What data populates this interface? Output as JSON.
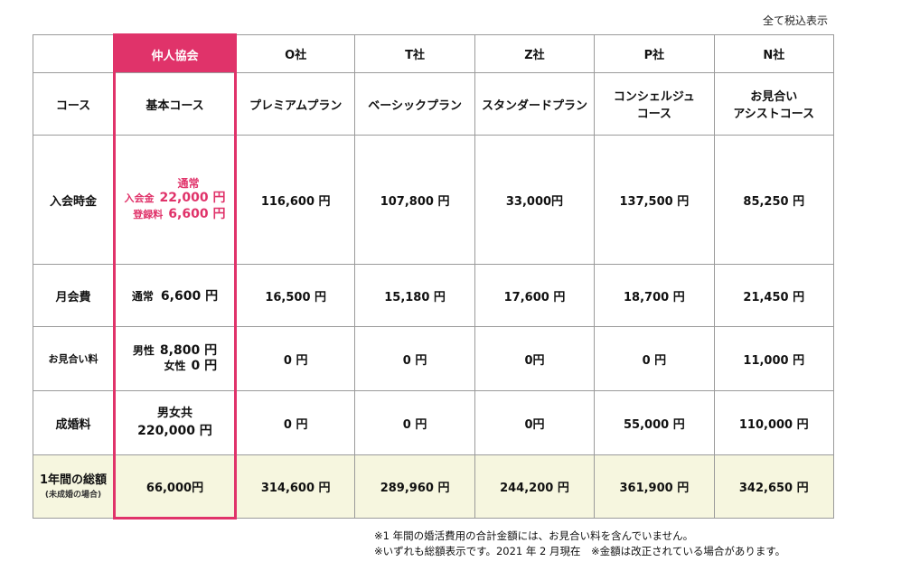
{
  "tax_note": "全て税込表示",
  "header": {
    "ours": "仲人協会",
    "companies": [
      "O社",
      "T社",
      "Z社",
      "P社",
      "N社"
    ]
  },
  "rows": {
    "course": {
      "label": "コース",
      "ours": "基本コース",
      "values": [
        "プレミアムプラン",
        "ベーシックプラン",
        "スタンダードプラン",
        "コンシェルジュ\nコース",
        "お見合い\nアシストコース"
      ]
    },
    "entry": {
      "label": "入会時金",
      "ours": {
        "tag": "通常",
        "fee1_label": "入会金",
        "fee1_value": "22,000 円",
        "fee2_label": "登録料",
        "fee2_value": "6,600 円"
      },
      "values": [
        "116,600 円",
        "107,800 円",
        "33,000円",
        "137,500 円",
        "85,250 円"
      ]
    },
    "monthly": {
      "label": "月会費",
      "ours_tag": "通常",
      "ours_value": "6,600 円",
      "values": [
        "16,500 円",
        "15,180 円",
        "17,600 円",
        "18,700 円",
        "21,450 円"
      ]
    },
    "meeting": {
      "label": "お見合い料",
      "ours_male_label": "男性",
      "ours_male_value": "8,800 円",
      "ours_female_label": "女性",
      "ours_female_value": "0 円",
      "values": [
        "0 円",
        "0 円",
        "0円",
        "0 円",
        "11,000 円"
      ]
    },
    "marriage": {
      "label": "成婚料",
      "ours_line1": "男女共",
      "ours_line2": "220,000 円",
      "values": [
        "0 円",
        "0 円",
        "0円",
        "55,000 円",
        "110,000 円"
      ]
    },
    "total": {
      "label": "1年間の総額",
      "sublabel": "(未成婚の場合)",
      "ours": "66,000円",
      "values": [
        "314,600 円",
        "289,960 円",
        "244,200 円",
        "361,900 円",
        "342,650 円"
      ]
    }
  },
  "footnotes": [
    "※1 年間の婚活費用の合計金額には、お見合い料を含んでいません。",
    "※いずれも総額表示です。2021 年 2 月現在　※金額は改正されている場合があります。"
  ],
  "colors": {
    "accent": "#e0336a",
    "total_bg": "#f6f6df",
    "border": "#9a9a9a"
  }
}
